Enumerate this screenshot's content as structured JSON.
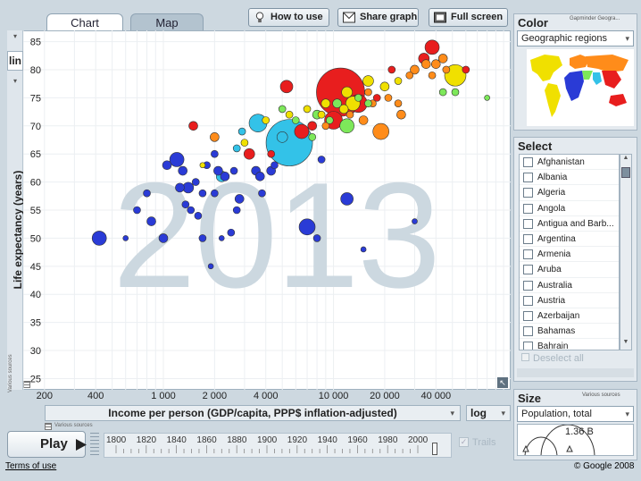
{
  "tabs": [
    {
      "label": "Chart"
    },
    {
      "label": "Map"
    }
  ],
  "toolbar": {
    "how_to_use": "How to use",
    "share_graph": "Share graph",
    "full_screen": "Full screen"
  },
  "yaxis": {
    "scale": "lin",
    "label": "Life expectancy (years)",
    "source": "Various sources",
    "ticks": [
      "85",
      "80",
      "75",
      "70",
      "65",
      "60",
      "55",
      "50",
      "45",
      "40",
      "35",
      "30",
      "25"
    ]
  },
  "xaxis": {
    "label": "Income per person (GDP/capita, PPP$ inflation-adjusted)",
    "scale": "log",
    "source": "Various sources",
    "ticks": [
      "200",
      "400",
      "1 000",
      "2 000",
      "4 000",
      "10 000",
      "20 000",
      "40 000"
    ]
  },
  "year_label": "2013",
  "color_panel": {
    "title": "Color",
    "source": "Gapminder Geogra...",
    "selected": "Geographic regions",
    "regions": {
      "americas": "#f0e000",
      "europe_asia": "#ff8c1a",
      "africa": "#2a3bd6",
      "south_asia": "#33c2e8",
      "east_asia": "#e81e1e",
      "middle_east": "#7de85a"
    }
  },
  "select_panel": {
    "title": "Select",
    "deselect": "Deselect all",
    "countries": [
      "Afghanistan",
      "Albania",
      "Algeria",
      "Angola",
      "Antigua and Barb...",
      "Argentina",
      "Armenia",
      "Aruba",
      "Australia",
      "Austria",
      "Azerbaijan",
      "Bahamas",
      "Bahrain"
    ]
  },
  "size_panel": {
    "title": "Size",
    "source": "Various sources",
    "selected": "Population, total",
    "value": "1.36 B"
  },
  "play": {
    "label": "Play",
    "trails": "Trails",
    "years": [
      "1800",
      "1820",
      "1840",
      "1860",
      "1880",
      "1900",
      "1920",
      "1940",
      "1960",
      "1980",
      "2000"
    ]
  },
  "footer": {
    "terms": "Terms of use",
    "copyright": "© Google 2008"
  },
  "chart_data": {
    "type": "scatter",
    "xlabel": "Income per person (GDP/capita, PPP$ inflation-adjusted)",
    "ylabel": "Life expectancy (years)",
    "xscale": "log",
    "xlim": [
      150,
      110000
    ],
    "ylim": [
      23,
      87
    ],
    "points": [
      {
        "x": 420,
        "y": 50,
        "r": 8,
        "c": "#2a3bd6"
      },
      {
        "x": 600,
        "y": 50,
        "r": 3,
        "c": "#2a3bd6"
      },
      {
        "x": 700,
        "y": 55,
        "r": 4,
        "c": "#2a3bd6"
      },
      {
        "x": 850,
        "y": 53,
        "r": 5,
        "c": "#2a3bd6"
      },
      {
        "x": 1000,
        "y": 50,
        "r": 5,
        "c": "#2a3bd6"
      },
      {
        "x": 800,
        "y": 58,
        "r": 4,
        "c": "#2a3bd6"
      },
      {
        "x": 1050,
        "y": 63,
        "r": 5,
        "c": "#2a3bd6"
      },
      {
        "x": 1200,
        "y": 64,
        "r": 8,
        "c": "#2a3bd6"
      },
      {
        "x": 1300,
        "y": 62,
        "r": 5,
        "c": "#2a3bd6"
      },
      {
        "x": 1400,
        "y": 59,
        "r": 6,
        "c": "#2a3bd6"
      },
      {
        "x": 1250,
        "y": 59,
        "r": 5,
        "c": "#2a3bd6"
      },
      {
        "x": 1550,
        "y": 60,
        "r": 4,
        "c": "#2a3bd6"
      },
      {
        "x": 1700,
        "y": 58,
        "r": 4,
        "c": "#2a3bd6"
      },
      {
        "x": 1350,
        "y": 56,
        "r": 4,
        "c": "#2a3bd6"
      },
      {
        "x": 1450,
        "y": 55,
        "r": 4,
        "c": "#2a3bd6"
      },
      {
        "x": 1600,
        "y": 54,
        "r": 4,
        "c": "#2a3bd6"
      },
      {
        "x": 1800,
        "y": 63,
        "r": 4,
        "c": "#2a3bd6"
      },
      {
        "x": 2100,
        "y": 62,
        "r": 5,
        "c": "#2a3bd6"
      },
      {
        "x": 2300,
        "y": 61,
        "r": 5,
        "c": "#2a3bd6"
      },
      {
        "x": 2600,
        "y": 62,
        "r": 4,
        "c": "#2a3bd6"
      },
      {
        "x": 2800,
        "y": 57,
        "r": 5,
        "c": "#2a3bd6"
      },
      {
        "x": 2000,
        "y": 58,
        "r": 4,
        "c": "#2a3bd6"
      },
      {
        "x": 2700,
        "y": 55,
        "r": 4,
        "c": "#2a3bd6"
      },
      {
        "x": 2200,
        "y": 50,
        "r": 3,
        "c": "#2a3bd6"
      },
      {
        "x": 2500,
        "y": 51,
        "r": 4,
        "c": "#2a3bd6"
      },
      {
        "x": 1700,
        "y": 50,
        "r": 4,
        "c": "#2a3bd6"
      },
      {
        "x": 1900,
        "y": 45,
        "r": 3,
        "c": "#2a3bd6"
      },
      {
        "x": 3500,
        "y": 62,
        "r": 5,
        "c": "#2a3bd6"
      },
      {
        "x": 3700,
        "y": 61,
        "r": 5,
        "c": "#2a3bd6"
      },
      {
        "x": 4300,
        "y": 62,
        "r": 5,
        "c": "#2a3bd6"
      },
      {
        "x": 3800,
        "y": 58,
        "r": 4,
        "c": "#2a3bd6"
      },
      {
        "x": 7000,
        "y": 52,
        "r": 9,
        "c": "#2a3bd6"
      },
      {
        "x": 8000,
        "y": 50,
        "r": 4,
        "c": "#2a3bd6"
      },
      {
        "x": 12000,
        "y": 57,
        "r": 7,
        "c": "#2a3bd6"
      },
      {
        "x": 15000,
        "y": 48,
        "r": 3,
        "c": "#2a3bd6"
      },
      {
        "x": 30000,
        "y": 53,
        "r": 3,
        "c": "#2a3bd6"
      },
      {
        "x": 8500,
        "y": 64,
        "r": 4,
        "c": "#2a3bd6"
      },
      {
        "x": 2000,
        "y": 65,
        "r": 4,
        "c": "#2a3bd6"
      },
      {
        "x": 4500,
        "y": 63,
        "r": 4,
        "c": "#2a3bd6"
      },
      {
        "x": 5500,
        "y": 67,
        "r": 26,
        "c": "#33c2e8"
      },
      {
        "x": 3600,
        "y": 70.5,
        "r": 10,
        "c": "#33c2e8"
      },
      {
        "x": 2200,
        "y": 61,
        "r": 6,
        "c": "#33c2e8"
      },
      {
        "x": 5000,
        "y": 68,
        "r": 6,
        "c": "#33c2e8"
      },
      {
        "x": 2700,
        "y": 66,
        "r": 4,
        "c": "#33c2e8"
      },
      {
        "x": 2900,
        "y": 69,
        "r": 4,
        "c": "#33c2e8"
      },
      {
        "x": 11000,
        "y": 76,
        "r": 27,
        "c": "#e81e1e"
      },
      {
        "x": 10000,
        "y": 71,
        "r": 10,
        "c": "#e81e1e"
      },
      {
        "x": 6500,
        "y": 69,
        "r": 8,
        "c": "#e81e1e"
      },
      {
        "x": 5300,
        "y": 77,
        "r": 7,
        "c": "#e81e1e"
      },
      {
        "x": 3200,
        "y": 65,
        "r": 6,
        "c": "#e81e1e"
      },
      {
        "x": 1500,
        "y": 70,
        "r": 5,
        "c": "#e81e1e"
      },
      {
        "x": 7500,
        "y": 70,
        "r": 5,
        "c": "#e81e1e"
      },
      {
        "x": 14000,
        "y": 74,
        "r": 10,
        "c": "#e81e1e"
      },
      {
        "x": 38000,
        "y": 84,
        "r": 8,
        "c": "#e81e1e"
      },
      {
        "x": 34000,
        "y": 82,
        "r": 6,
        "c": "#e81e1e"
      },
      {
        "x": 22000,
        "y": 80,
        "r": 4,
        "c": "#e81e1e"
      },
      {
        "x": 60000,
        "y": 80,
        "r": 4,
        "c": "#e81e1e"
      },
      {
        "x": 18000,
        "y": 75,
        "r": 4,
        "c": "#e81e1e"
      },
      {
        "x": 4300,
        "y": 65,
        "r": 4,
        "c": "#e81e1e"
      },
      {
        "x": 16000,
        "y": 78,
        "r": 6,
        "c": "#f0e000"
      },
      {
        "x": 52000,
        "y": 79,
        "r": 12,
        "c": "#f0e000"
      },
      {
        "x": 13000,
        "y": 74,
        "r": 8,
        "c": "#f0e000"
      },
      {
        "x": 12000,
        "y": 76,
        "r": 6,
        "c": "#f0e000"
      },
      {
        "x": 9000,
        "y": 74,
        "r": 5,
        "c": "#f0e000"
      },
      {
        "x": 11500,
        "y": 73,
        "r": 5,
        "c": "#f0e000"
      },
      {
        "x": 7000,
        "y": 73,
        "r": 4,
        "c": "#f0e000"
      },
      {
        "x": 8500,
        "y": 72,
        "r": 4,
        "c": "#f0e000"
      },
      {
        "x": 5500,
        "y": 72,
        "r": 4,
        "c": "#f0e000"
      },
      {
        "x": 4000,
        "y": 71,
        "r": 4,
        "c": "#f0e000"
      },
      {
        "x": 3000,
        "y": 67,
        "r": 4,
        "c": "#f0e000"
      },
      {
        "x": 1700,
        "y": 63,
        "r": 3,
        "c": "#f0e000"
      },
      {
        "x": 20000,
        "y": 77,
        "r": 5,
        "c": "#f0e000"
      },
      {
        "x": 24000,
        "y": 78,
        "r": 4,
        "c": "#f0e000"
      },
      {
        "x": 19000,
        "y": 69,
        "r": 9,
        "c": "#ff8c1a"
      },
      {
        "x": 25000,
        "y": 72,
        "r": 5,
        "c": "#ff8c1a"
      },
      {
        "x": 15000,
        "y": 71,
        "r": 5,
        "c": "#ff8c1a"
      },
      {
        "x": 9000,
        "y": 70,
        "r": 4,
        "c": "#ff8c1a"
      },
      {
        "x": 17000,
        "y": 74,
        "r": 4,
        "c": "#ff8c1a"
      },
      {
        "x": 21000,
        "y": 75,
        "r": 4,
        "c": "#ff8c1a"
      },
      {
        "x": 30000,
        "y": 80,
        "r": 5,
        "c": "#ff8c1a"
      },
      {
        "x": 35000,
        "y": 81,
        "r": 5,
        "c": "#ff8c1a"
      },
      {
        "x": 40000,
        "y": 81,
        "r": 5,
        "c": "#ff8c1a"
      },
      {
        "x": 44000,
        "y": 82,
        "r": 5,
        "c": "#ff8c1a"
      },
      {
        "x": 38000,
        "y": 79,
        "r": 4,
        "c": "#ff8c1a"
      },
      {
        "x": 46000,
        "y": 80,
        "r": 4,
        "c": "#ff8c1a"
      },
      {
        "x": 28000,
        "y": 79,
        "r": 4,
        "c": "#ff8c1a"
      },
      {
        "x": 16000,
        "y": 76,
        "r": 4,
        "c": "#ff8c1a"
      },
      {
        "x": 2000,
        "y": 68,
        "r": 5,
        "c": "#ff8c1a"
      },
      {
        "x": 24000,
        "y": 74,
        "r": 4,
        "c": "#ff8c1a"
      },
      {
        "x": 12500,
        "y": 72,
        "r": 4,
        "c": "#ff8c1a"
      },
      {
        "x": 12000,
        "y": 70,
        "r": 8,
        "c": "#7de85a"
      },
      {
        "x": 5000,
        "y": 73,
        "r": 4,
        "c": "#7de85a"
      },
      {
        "x": 8000,
        "y": 72,
        "r": 5,
        "c": "#7de85a"
      },
      {
        "x": 10500,
        "y": 74,
        "r": 5,
        "c": "#7de85a"
      },
      {
        "x": 14000,
        "y": 75,
        "r": 4,
        "c": "#7de85a"
      },
      {
        "x": 6000,
        "y": 71,
        "r": 4,
        "c": "#7de85a"
      },
      {
        "x": 7500,
        "y": 68,
        "r": 4,
        "c": "#7de85a"
      },
      {
        "x": 44000,
        "y": 76,
        "r": 4,
        "c": "#7de85a"
      },
      {
        "x": 52000,
        "y": 76,
        "r": 4,
        "c": "#7de85a"
      },
      {
        "x": 80000,
        "y": 75,
        "r": 3,
        "c": "#7de85a"
      },
      {
        "x": 16000,
        "y": 74,
        "r": 4,
        "c": "#7de85a"
      },
      {
        "x": 9500,
        "y": 71,
        "r": 4,
        "c": "#7de85a"
      }
    ]
  }
}
